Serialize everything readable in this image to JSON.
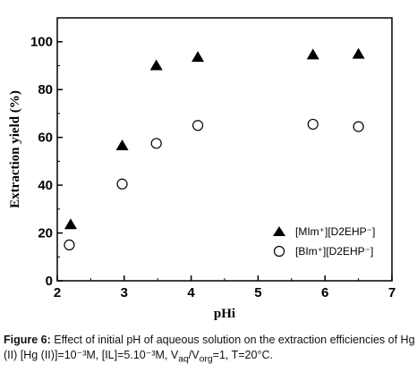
{
  "chart_data": {
    "type": "scatter",
    "xlabel": "pHi",
    "ylabel": "Extraction yield (%)",
    "xlim": [
      2,
      7
    ],
    "ylim": [
      0,
      110
    ],
    "xticks": [
      2,
      3,
      4,
      5,
      6,
      7
    ],
    "yticks": [
      0,
      20,
      40,
      60,
      80,
      100
    ],
    "grid": false,
    "legend_position": "bottom-right",
    "series": [
      {
        "name": "[MIm⁺][D2EHP⁻]",
        "marker": "filled-triangle",
        "color": "#000000",
        "x": [
          2.2,
          2.97,
          3.48,
          4.1,
          5.82,
          6.5
        ],
        "y": [
          23.5,
          56.5,
          90,
          93.5,
          94.5,
          94.8
        ]
      },
      {
        "name": "[BIm⁺][D2EHP⁻]",
        "marker": "open-circle",
        "color": "#000000",
        "x": [
          2.18,
          2.97,
          3.48,
          4.1,
          5.82,
          6.5
        ],
        "y": [
          15,
          40.5,
          57.5,
          65,
          65.5,
          64.5
        ]
      }
    ]
  },
  "caption": {
    "label": "Figure 6:",
    "text": "Effect of initial pH of aqueous solution on the extraction efficiencies of Hg (II) [Hg (II)]=10⁻³M, [IL]=5.10⁻³M, V",
    "sub1": "aq",
    "mid": "/V",
    "sub2": "org",
    "tail": "=1, T=20°C."
  }
}
